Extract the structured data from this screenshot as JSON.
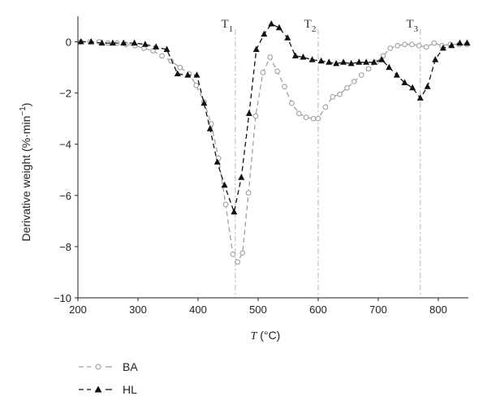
{
  "chart_data": {
    "type": "line",
    "xlabel": "T (°C)",
    "xlabel_var": "T",
    "xlabel_unit": " (°C)",
    "ylabel": "Derivative weight (%·min⁻¹)",
    "ylabel_main": "Derivative weight (%·min",
    "ylabel_sup": "−1",
    "ylabel_close": ")",
    "xlim": [
      200,
      850
    ],
    "ylim": [
      -10,
      1
    ],
    "xticks": [
      200,
      300,
      400,
      500,
      600,
      700,
      800
    ],
    "yticks": [
      0,
      -2,
      -4,
      -6,
      -8,
      -10
    ],
    "xtick_labels": [
      "200",
      "300",
      "400",
      "500",
      "600",
      "700",
      "800"
    ],
    "ytick_labels": [
      "0",
      "−2",
      "−4",
      "−6",
      "−8",
      "−10"
    ],
    "grid": false,
    "legend_position": "bottom-left",
    "markers": [
      {
        "sym": "T",
        "sub": "1",
        "x": 462
      },
      {
        "sym": "T",
        "sub": "2",
        "x": 600
      },
      {
        "sym": "T",
        "sub": "3",
        "x": 770
      }
    ],
    "series": [
      {
        "name": "BA",
        "color": "#a0a0a0",
        "marker": "circle",
        "x": [
          205,
          220,
          235,
          250,
          265,
          280,
          295,
          310,
          325,
          340,
          355,
          370,
          385,
          397,
          410,
          422,
          434,
          446,
          458,
          466,
          474,
          484,
          496,
          508,
          520,
          532,
          544,
          556,
          568,
          580,
          592,
          600,
          612,
          624,
          636,
          648,
          660,
          672,
          684,
          696,
          708,
          720,
          732,
          744,
          756,
          768,
          780,
          793,
          806,
          820,
          835,
          848
        ],
        "y": [
          0,
          0,
          0,
          -0.05,
          -0.05,
          -0.1,
          -0.15,
          -0.25,
          -0.35,
          -0.55,
          -0.75,
          -1.0,
          -1.25,
          -1.7,
          -2.35,
          -3.2,
          -4.55,
          -6.35,
          -8.3,
          -8.6,
          -8.25,
          -5.9,
          -2.9,
          -1.2,
          -0.6,
          -1.15,
          -1.75,
          -2.4,
          -2.8,
          -2.95,
          -3.0,
          -3.0,
          -2.55,
          -2.15,
          -2.05,
          -1.8,
          -1.55,
          -1.3,
          -1.05,
          -0.8,
          -0.55,
          -0.25,
          -0.15,
          -0.1,
          -0.1,
          -0.15,
          -0.2,
          -0.05,
          -0.15,
          -0.1,
          -0.1,
          -0.1
        ]
      },
      {
        "name": "HL",
        "color": "#111111",
        "marker": "triangle",
        "x": [
          205,
          222,
          240,
          258,
          276,
          294,
          312,
          330,
          348,
          366,
          383,
          398,
          410,
          420,
          432,
          444,
          460,
          472,
          485,
          497,
          510,
          522,
          535,
          549,
          562,
          575,
          590,
          605,
          618,
          630,
          642,
          655,
          668,
          680,
          693,
          706,
          718,
          731,
          744,
          757,
          770,
          782,
          795,
          808,
          822,
          836,
          848
        ],
        "y": [
          0,
          0,
          -0.05,
          -0.05,
          -0.05,
          -0.05,
          -0.1,
          -0.2,
          -0.3,
          -1.25,
          -1.3,
          -1.3,
          -2.4,
          -3.4,
          -4.7,
          -5.6,
          -6.65,
          -5.3,
          -2.8,
          -0.3,
          0.3,
          0.7,
          0.55,
          0.15,
          -0.55,
          -0.6,
          -0.7,
          -0.75,
          -0.8,
          -0.85,
          -0.8,
          -0.85,
          -0.8,
          -0.8,
          -0.8,
          -0.7,
          -1.0,
          -1.3,
          -1.6,
          -1.8,
          -2.2,
          -1.75,
          -0.7,
          -0.25,
          -0.15,
          -0.05,
          -0.05
        ]
      }
    ]
  }
}
